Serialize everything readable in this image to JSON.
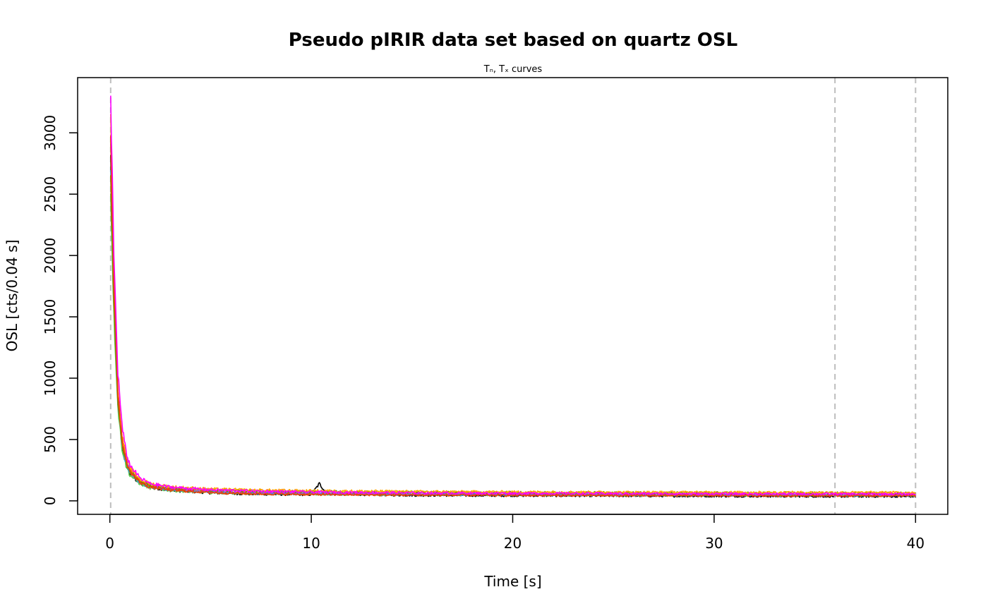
{
  "chart_data": {
    "type": "line",
    "title": "Pseudo pIRIR data set based on quartz OSL",
    "subtitle": "Tₙ, Tₓ curves",
    "xlabel": "Time [s]",
    "ylabel": "OSL [cts/0.04 s]",
    "xlim": [
      -1.6,
      41.6
    ],
    "ylim": [
      -110,
      3450
    ],
    "x_ticks": [
      0,
      10,
      20,
      30,
      40
    ],
    "y_ticks": [
      0,
      500,
      1000,
      1500,
      2000,
      2500,
      3000
    ],
    "grid": false,
    "legend": "none",
    "vlines": [
      {
        "x": 0.04,
        "color": "#bebebe",
        "style": "dashed"
      },
      {
        "x": 36,
        "color": "#bebebe",
        "style": "dashed"
      },
      {
        "x": 40,
        "color": "#bebebe",
        "style": "dashed"
      }
    ],
    "series": [
      {
        "color": "#000000",
        "x": [
          0.04,
          0.2,
          0.4,
          0.6,
          0.8,
          1.0,
          1.5,
          2,
          3,
          4,
          5,
          7,
          10,
          10.4,
          10.8,
          15,
          20,
          25,
          30,
          35,
          40
        ],
        "y": [
          2800,
          1600,
          800,
          450,
          300,
          220,
          140,
          110,
          85,
          75,
          65,
          55,
          50,
          140,
          55,
          45,
          42,
          40,
          38,
          36,
          35
        ]
      },
      {
        "color": "#df536b",
        "x": [
          0.04,
          0.2,
          0.4,
          0.6,
          0.8,
          1.0,
          1.5,
          2,
          3,
          4,
          5,
          7,
          10,
          15,
          20,
          25,
          30,
          35,
          40
        ],
        "y": [
          3000,
          1800,
          900,
          520,
          340,
          250,
          160,
          120,
          95,
          85,
          75,
          65,
          58,
          52,
          50,
          48,
          47,
          46,
          45
        ]
      },
      {
        "color": "#61d04f",
        "x": [
          0.04,
          0.2,
          0.4,
          0.6,
          0.8,
          1.0,
          1.5,
          2,
          3,
          4,
          5,
          7,
          10,
          15,
          20,
          25,
          30,
          35,
          40
        ],
        "y": [
          2500,
          1500,
          760,
          430,
          290,
          210,
          140,
          105,
          85,
          75,
          68,
          60,
          55,
          50,
          48,
          46,
          45,
          44,
          43
        ]
      },
      {
        "color": "#2297e6",
        "x": [
          0.04,
          0.2,
          0.4,
          0.6,
          0.8,
          1.0,
          1.5,
          2,
          3,
          4,
          5,
          7,
          10,
          15,
          20,
          25,
          30,
          35,
          40
        ],
        "y": [
          2700,
          1650,
          820,
          470,
          310,
          230,
          150,
          115,
          92,
          82,
          72,
          64,
          58,
          53,
          51,
          49,
          48,
          47,
          46
        ]
      },
      {
        "color": "#9467bd",
        "x": [
          0.04,
          0.2,
          0.4,
          0.6,
          0.8,
          1.0,
          1.5,
          2,
          3,
          4,
          5,
          7,
          10,
          15,
          20,
          25,
          30,
          35,
          40
        ],
        "y": [
          2900,
          1750,
          860,
          490,
          320,
          240,
          155,
          118,
          95,
          85,
          76,
          67,
          60,
          55,
          53,
          51,
          50,
          49,
          48
        ]
      },
      {
        "color": "#808000",
        "x": [
          0.04,
          0.2,
          0.4,
          0.6,
          0.8,
          1.0,
          1.5,
          2,
          3,
          4,
          5,
          7,
          10,
          15,
          20,
          25,
          30,
          35,
          40
        ],
        "y": [
          2600,
          1600,
          800,
          470,
          320,
          240,
          160,
          125,
          105,
          95,
          88,
          80,
          75,
          70,
          68,
          66,
          65,
          64,
          63
        ]
      },
      {
        "color": "#ffa500",
        "x": [
          0.04,
          0.2,
          0.4,
          0.6,
          0.8,
          1.0,
          1.5,
          2,
          3,
          4,
          5,
          7,
          10,
          15,
          20,
          25,
          30,
          35,
          40
        ],
        "y": [
          3100,
          1850,
          920,
          540,
          360,
          270,
          175,
          140,
          115,
          105,
          96,
          88,
          82,
          76,
          73,
          71,
          70,
          69,
          68
        ]
      },
      {
        "color": "#ee4000",
        "x": [
          0.04,
          0.2,
          0.4,
          0.6,
          0.8,
          1.0,
          1.5,
          2,
          3,
          4,
          5,
          7,
          10,
          15,
          20,
          25,
          30,
          35,
          40
        ],
        "y": [
          2950,
          1780,
          880,
          500,
          330,
          240,
          150,
          112,
          88,
          78,
          68,
          58,
          52,
          47,
          45,
          44,
          43,
          42,
          42
        ]
      },
      {
        "color": "#ff00ff",
        "x": [
          0.04,
          0.2,
          0.4,
          0.6,
          0.8,
          1.0,
          1.5,
          2,
          3,
          4,
          5,
          7,
          10,
          15,
          20,
          25,
          30,
          35,
          40
        ],
        "y": [
          3300,
          2000,
          1050,
          620,
          400,
          290,
          185,
          140,
          112,
          100,
          90,
          80,
          72,
          65,
          62,
          60,
          58,
          57,
          56
        ]
      }
    ]
  }
}
